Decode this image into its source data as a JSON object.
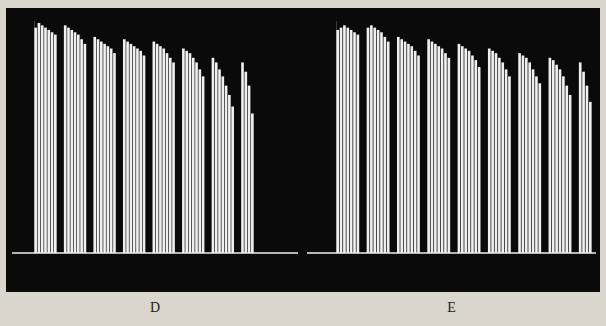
{
  "chart_data": [
    {
      "type": "bar",
      "title": "D",
      "categories": [
        null,
        null,
        null,
        null,
        null,
        null,
        null,
        null,
        null,
        null,
        null,
        null,
        null,
        null,
        null,
        null,
        null,
        null,
        null,
        null,
        null,
        null,
        null,
        null,
        null,
        null,
        null,
        null,
        null,
        null,
        null,
        null,
        null,
        null,
        null,
        null,
        null,
        null,
        null,
        null,
        null,
        null,
        null,
        null,
        null,
        null,
        null,
        null,
        null,
        null,
        null,
        null,
        null,
        null,
        null,
        null,
        null,
        null,
        null,
        null,
        null,
        null,
        null,
        null,
        null,
        null,
        null
      ],
      "values": [
        97,
        99,
        98,
        97,
        96,
        95,
        94,
        null,
        null,
        98,
        97,
        96,
        95,
        94,
        92,
        90,
        null,
        null,
        93,
        92,
        91,
        90,
        89,
        88,
        86,
        null,
        null,
        92,
        91,
        90,
        89,
        88,
        87,
        85,
        null,
        null,
        91,
        90,
        89,
        88,
        86,
        84,
        82,
        null,
        null,
        88,
        87,
        86,
        84,
        82,
        79,
        76,
        null,
        null,
        84,
        82,
        79,
        76,
        72,
        68,
        63,
        null,
        null,
        82,
        78,
        72,
        60
      ],
      "color": "#f0f0f0",
      "ylim": [
        0,
        100
      ],
      "grid": false,
      "tick_labels": false
    },
    {
      "type": "bar",
      "title": "E",
      "categories": [
        null,
        null,
        null,
        null,
        null,
        null,
        null,
        null,
        null,
        null,
        null,
        null,
        null,
        null,
        null,
        null,
        null,
        null,
        null,
        null,
        null,
        null,
        null,
        null,
        null,
        null,
        null,
        null,
        null,
        null,
        null,
        null,
        null,
        null,
        null,
        null,
        null,
        null,
        null,
        null,
        null,
        null,
        null,
        null,
        null,
        null,
        null,
        null,
        null,
        null,
        null,
        null,
        null,
        null,
        null,
        null,
        null,
        null,
        null,
        null,
        null,
        null,
        null,
        null,
        null,
        null,
        null,
        null,
        null,
        null,
        null,
        null,
        null,
        null,
        null,
        null
      ],
      "values": [
        96,
        97,
        98,
        97,
        96,
        95,
        94,
        null,
        null,
        97,
        98,
        97,
        96,
        95,
        93,
        91,
        null,
        null,
        93,
        92,
        91,
        90,
        89,
        87,
        85,
        null,
        null,
        92,
        91,
        90,
        89,
        88,
        86,
        84,
        null,
        null,
        90,
        89,
        88,
        87,
        85,
        83,
        80,
        null,
        null,
        88,
        87,
        86,
        84,
        82,
        79,
        76,
        null,
        null,
        86,
        85,
        84,
        82,
        79,
        76,
        73,
        null,
        null,
        84,
        83,
        81,
        79,
        76,
        72,
        68,
        null,
        null,
        82,
        78,
        72,
        65
      ],
      "color": "#f0f0f0",
      "ylim": [
        0,
        100
      ],
      "grid": false,
      "tick_labels": false
    }
  ]
}
